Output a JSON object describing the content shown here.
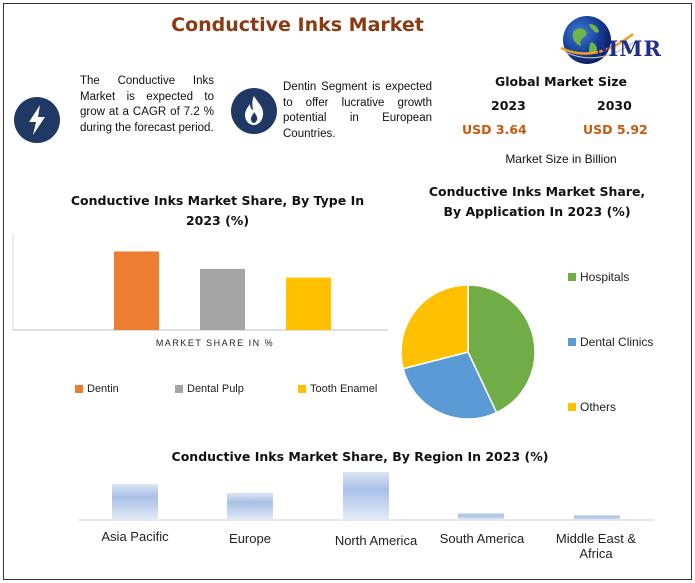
{
  "header": {
    "title": "Conductive Inks Market",
    "logo_text": "MMR"
  },
  "info_blocks": [
    {
      "icon": "lightning-icon",
      "text": "The Conductive Inks Market is expected to grow at a CAGR of 7.2 % during the forecast period."
    },
    {
      "icon": "flame-icon",
      "text": "Dentin Segment is expected to offer lucrative growth potential in European Countries."
    }
  ],
  "global_market": {
    "title": "Global Market Size",
    "year_start": "2023",
    "year_end": "2030",
    "value_start": "USD 3.64",
    "value_end": "USD 5.92",
    "caption": "Market Size in Billion"
  },
  "colors": {
    "dentin": "#ed7d31",
    "dental_pulp": "#a5a5a5",
    "tooth_enamel": "#ffc000",
    "hospitals": "#70ad47",
    "dental_clinics": "#5b9bd5",
    "others": "#ffc000",
    "region_bar": "#b4c7e7",
    "title_brown": "#8b3a12",
    "usd_orange": "#c55a11",
    "icon_navy": "#1f3864"
  },
  "chart_data": [
    {
      "type": "bar",
      "title": "Conductive Inks Market Share, By Type In 2023 (%)",
      "xlabel": "MARKET SHARE IN %",
      "categories": [
        "Dentin",
        "Dental Pulp",
        "Tooth Enamel"
      ],
      "values": [
        45,
        35,
        30
      ],
      "ylim": [
        0,
        55
      ],
      "legend_position": "bottom"
    },
    {
      "type": "pie",
      "title": "Conductive Inks Market Share, By Application In 2023 (%)",
      "labels": [
        "Hospitals",
        "Dental Clinics",
        "Others"
      ],
      "values": [
        43,
        28,
        29
      ],
      "legend_position": "left"
    },
    {
      "type": "bar",
      "title": "Conductive Inks Market Share, By Region In 2023 (%)",
      "categories": [
        "Asia Pacific",
        "Europe",
        "North America",
        "South America",
        "Middle East & Africa"
      ],
      "values": [
        36,
        27,
        48,
        7,
        5
      ],
      "ylim": [
        0,
        50
      ]
    }
  ]
}
